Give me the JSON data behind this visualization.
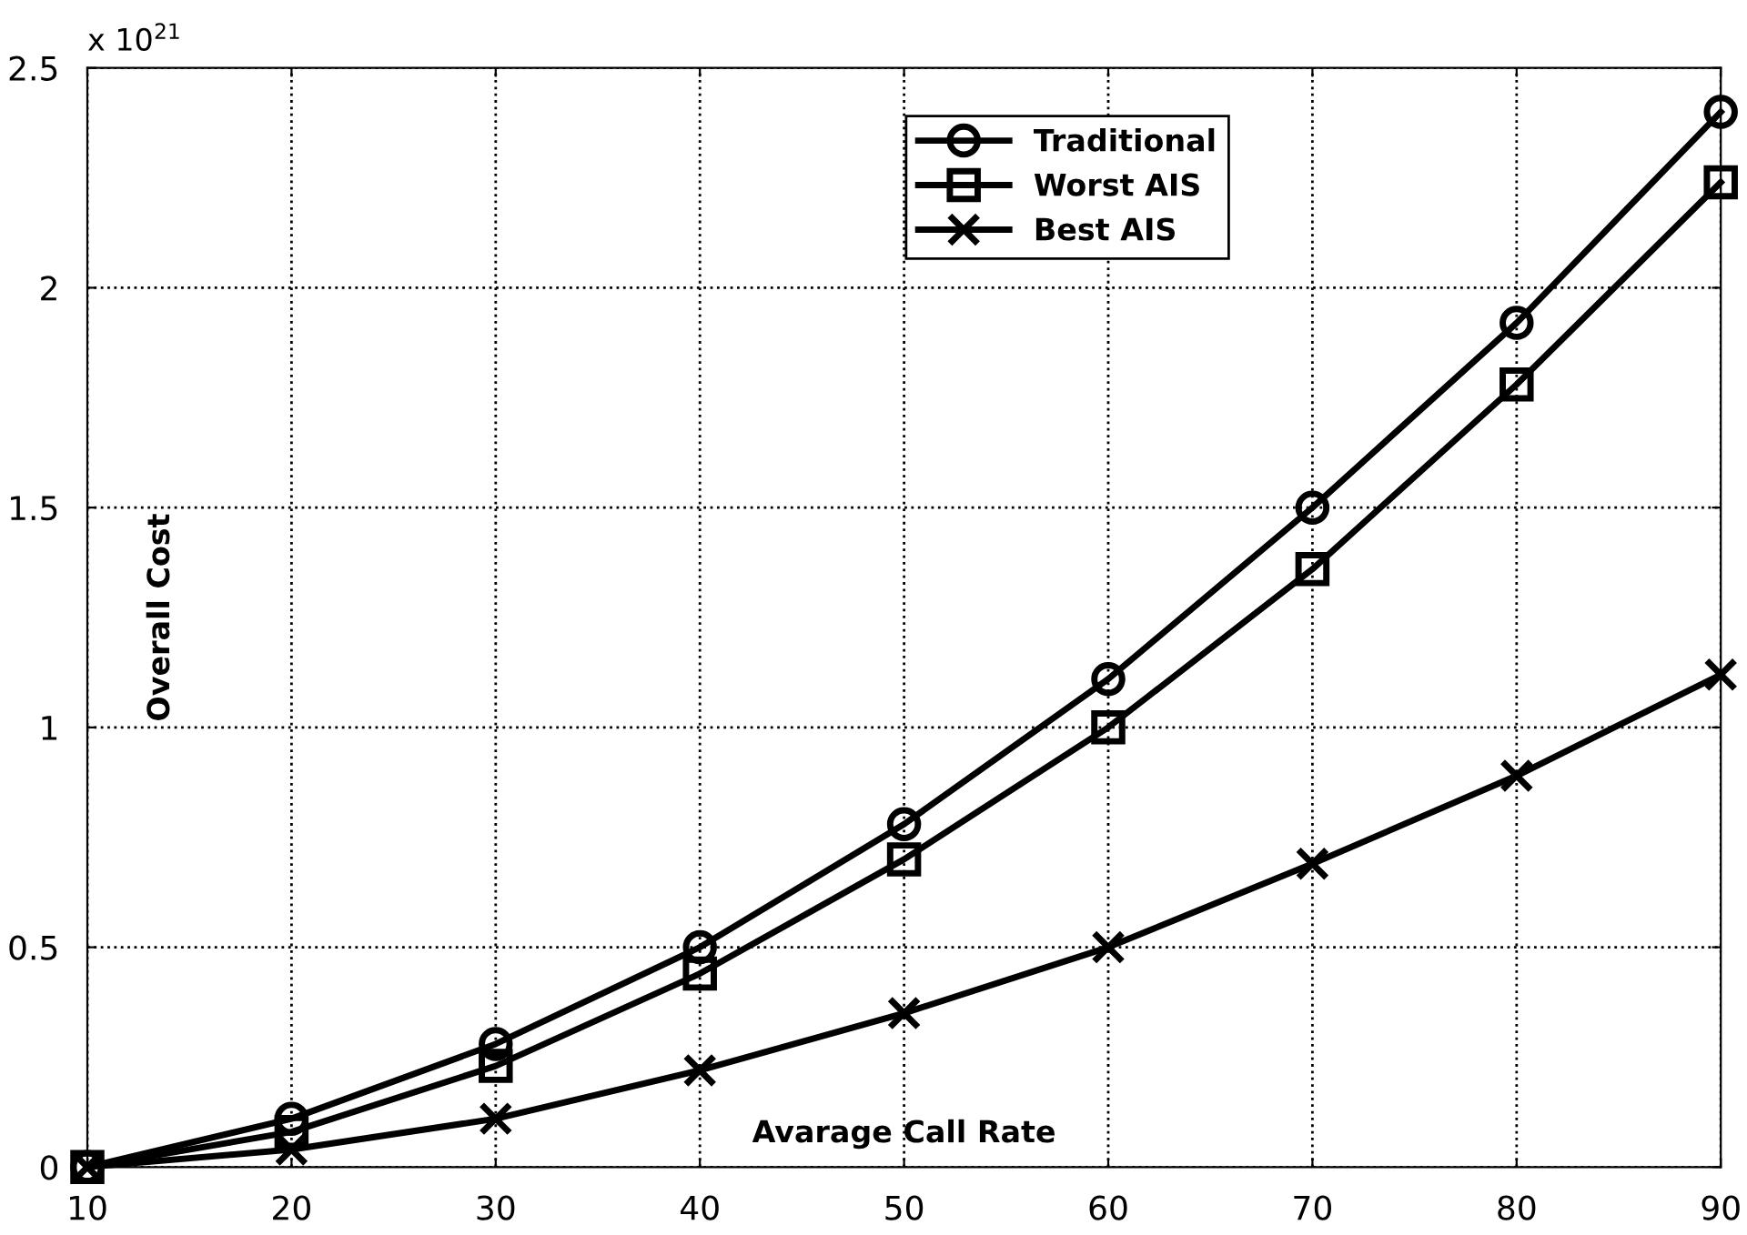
{
  "chart_data": {
    "type": "line",
    "xlabel": "Avarage Call Rate",
    "ylabel": "Overall Cost",
    "annotations": [
      "x 10$^{21}$"
    ],
    "x": [
      10,
      20,
      30,
      40,
      50,
      60,
      70,
      80,
      90
    ],
    "series": [
      {
        "name": "Traditional",
        "color": "#000000",
        "marker": "circle",
        "values": [
          0,
          0.11,
          0.28,
          0.5,
          0.78,
          1.11,
          1.5,
          1.92,
          2.4
        ]
      },
      {
        "name": "Worst AIS",
        "color": "#000000",
        "marker": "square",
        "values": [
          0,
          0.08,
          0.23,
          0.44,
          0.7,
          1.0,
          1.36,
          1.78,
          2.24
        ]
      },
      {
        "name": "Best AIS",
        "color": "#000000",
        "marker": "cross",
        "values": [
          0,
          0.04,
          0.11,
          0.22,
          0.35,
          0.5,
          0.69,
          0.89,
          1.12
        ]
      }
    ],
    "xlim": [
      10,
      90
    ],
    "xticks": [
      10,
      20,
      30,
      40,
      50,
      60,
      70,
      80,
      90
    ],
    "ylim": [
      0,
      2.5
    ],
    "yticks": [
      0,
      0.5,
      1,
      1.5,
      2,
      2.5
    ],
    "grid": true,
    "legend": "top",
    "line_style": "solid"
  }
}
